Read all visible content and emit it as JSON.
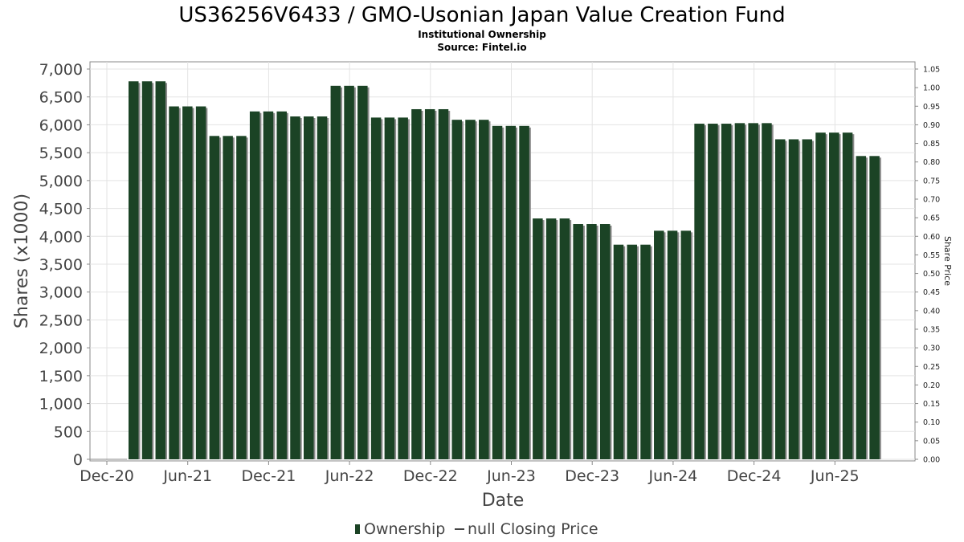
{
  "chart_data": {
    "type": "bar",
    "title": "US36256V6433 / GMO-Usonian Japan Value Creation Fund",
    "subtitle": "Institutional Ownership",
    "source": "Source: Fintel.io",
    "xlabel": "Date",
    "ylabel": "Shares (x1000)",
    "y2label": "Share Price",
    "ylim": [
      0,
      7000
    ],
    "y2lim": [
      0,
      1.05
    ],
    "grid": true,
    "legend_position": "bottom-center",
    "x_ticks": [
      "Dec-20",
      "Jun-21",
      "Dec-21",
      "Jun-22",
      "Dec-22",
      "Jun-23",
      "Dec-23",
      "Jun-24",
      "Dec-24",
      "Jun-25"
    ],
    "y_ticks": [
      "0",
      "500",
      "1,000",
      "1,500",
      "2,000",
      "2,500",
      "3,000",
      "3,500",
      "4,000",
      "4,500",
      "5,000",
      "5,500",
      "6,000",
      "6,500",
      "7,000"
    ],
    "y2_ticks": [
      "0.00",
      "0.05",
      "0.10",
      "0.15",
      "0.20",
      "0.25",
      "0.30",
      "0.35",
      "0.40",
      "0.45",
      "0.50",
      "0.55",
      "0.60",
      "0.65",
      "0.70",
      "0.75",
      "0.80",
      "0.85",
      "0.90",
      "0.95",
      "1.00",
      "1.05"
    ],
    "series": [
      {
        "name": "Ownership",
        "color": "#1b4325",
        "values": [
          6780,
          6780,
          6780,
          6330,
          6330,
          6330,
          5800,
          5800,
          5800,
          6240,
          6240,
          6240,
          6150,
          6150,
          6150,
          6700,
          6700,
          6700,
          6130,
          6130,
          6130,
          6280,
          6280,
          6280,
          6090,
          6090,
          6090,
          5980,
          5980,
          5980,
          4320,
          4320,
          4320,
          4220,
          4220,
          4220,
          3850,
          3850,
          3850,
          4100,
          4100,
          4100,
          6020,
          6020,
          6020,
          6030,
          6030,
          6030,
          5740,
          5740,
          5740,
          5860,
          5860,
          5860,
          5440,
          5440
        ]
      },
      {
        "name": "null Closing Price",
        "color": "#444444",
        "values": []
      }
    ]
  }
}
